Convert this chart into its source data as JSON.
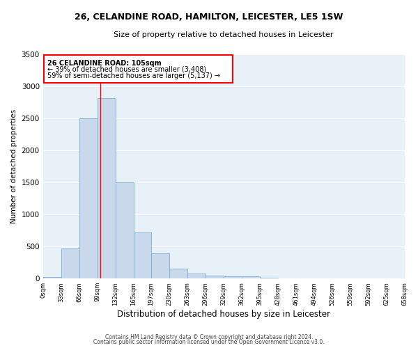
{
  "title1": "26, CELANDINE ROAD, HAMILTON, LEICESTER, LE5 1SW",
  "title2": "Size of property relative to detached houses in Leicester",
  "xlabel": "Distribution of detached houses by size in Leicester",
  "ylabel": "Number of detached properties",
  "bar_color": "#c9d9eb",
  "bar_edge_color": "#7aafd4",
  "bg_color": "#e8f0f8",
  "grid_color": "#ffffff",
  "property_line_x": 105,
  "annotation_line1": "26 CELANDINE ROAD: 105sqm",
  "annotation_line2": "← 39% of detached houses are smaller (3,408)",
  "annotation_line3": "59% of semi-detached houses are larger (5,137) →",
  "bin_edges": [
    0,
    33,
    66,
    99,
    132,
    165,
    197,
    230,
    263,
    296,
    329,
    362,
    395,
    428,
    461,
    494,
    526,
    559,
    592,
    625,
    658
  ],
  "bin_labels": [
    "0sqm",
    "33sqm",
    "66sqm",
    "99sqm",
    "132sqm",
    "165sqm",
    "197sqm",
    "230sqm",
    "263sqm",
    "296sqm",
    "329sqm",
    "362sqm",
    "395sqm",
    "428sqm",
    "461sqm",
    "494sqm",
    "526sqm",
    "559sqm",
    "592sqm",
    "625sqm",
    "658sqm"
  ],
  "bar_heights": [
    20,
    470,
    2500,
    2820,
    1500,
    720,
    390,
    150,
    75,
    50,
    40,
    30,
    10,
    0,
    0,
    0,
    0,
    0,
    0,
    0
  ],
  "ylim": [
    0,
    3500
  ],
  "yticks": [
    0,
    500,
    1000,
    1500,
    2000,
    2500,
    3000,
    3500
  ],
  "footer1": "Contains HM Land Registry data © Crown copyright and database right 2024.",
  "footer2": "Contains public sector information licensed under the Open Government Licence v3.0."
}
